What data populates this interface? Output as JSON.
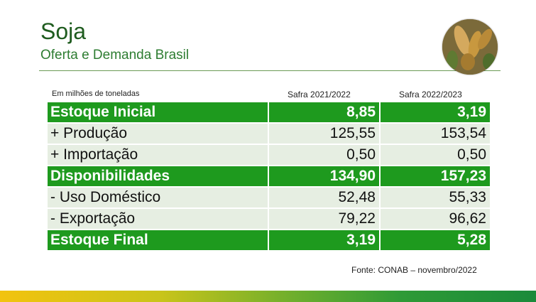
{
  "header": {
    "title": "Soja",
    "subtitle": "Oferta e Demanda Brasil"
  },
  "table": {
    "unit_label": "Em milhões de toneladas",
    "columns": [
      "Safra 2021/2022",
      "Safra 2022/2023"
    ],
    "rows": [
      {
        "label": "Estoque Inicial",
        "values": [
          "8,85",
          "3,19"
        ],
        "highlight": true
      },
      {
        "label": "+ Produção",
        "values": [
          "125,55",
          "153,54"
        ],
        "highlight": false
      },
      {
        "label": "+ Importação",
        "values": [
          "0,50",
          "0,50"
        ],
        "highlight": false
      },
      {
        "label": "Disponibilidades",
        "values": [
          "134,90",
          "157,23"
        ],
        "highlight": true
      },
      {
        "label": "- Uso Doméstico",
        "values": [
          "52,48",
          "55,33"
        ],
        "highlight": false
      },
      {
        "label": "- Exportação",
        "values": [
          "79,22",
          "96,62"
        ],
        "highlight": false
      },
      {
        "label": "Estoque Final",
        "values": [
          "3,19",
          "5,28"
        ],
        "highlight": true
      }
    ]
  },
  "footer": {
    "source": "Fonte: CONAB – novembro/2022"
  },
  "colors": {
    "highlight_row": "#1e9a1e",
    "plain_row": "#e6eee2",
    "title": "#1f5c1f"
  },
  "icons": {
    "photo": "soybean-pods-photo"
  }
}
